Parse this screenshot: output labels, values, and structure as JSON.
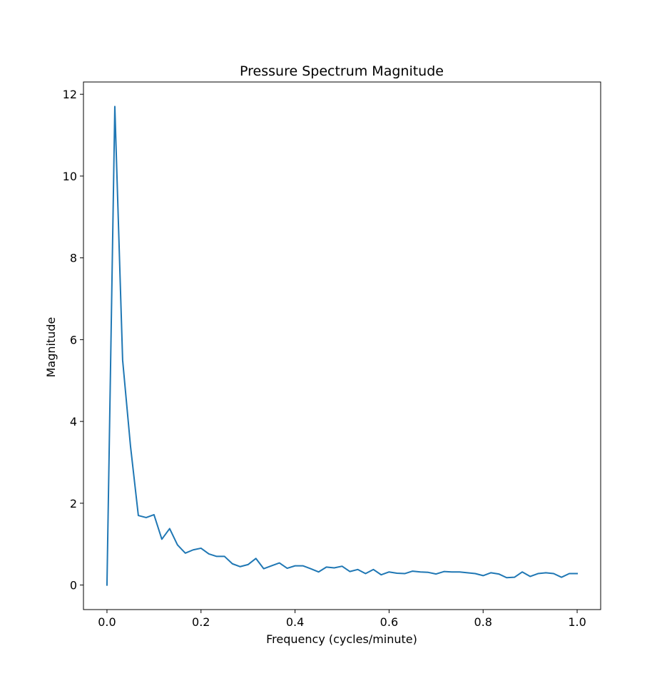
{
  "chart_data": {
    "type": "line",
    "title": "Pressure Spectrum Magnitude",
    "xlabel": "Frequency (cycles/minute)",
    "ylabel": "Magnitude",
    "xlim": [
      -0.05,
      1.05
    ],
    "ylim": [
      -0.6,
      12.3
    ],
    "xticks": [
      0.0,
      0.2,
      0.4,
      0.6,
      0.8,
      1.0
    ],
    "xtick_labels": [
      "0.0",
      "0.2",
      "0.4",
      "0.6",
      "0.8",
      "1.0"
    ],
    "yticks": [
      0,
      2,
      4,
      6,
      8,
      10,
      12
    ],
    "ytick_labels": [
      "0",
      "2",
      "4",
      "6",
      "8",
      "10",
      "12"
    ],
    "grid": false,
    "series": [
      {
        "color": "#1f77b4",
        "x": [
          0.0,
          0.0167,
          0.0333,
          0.05,
          0.0667,
          0.0833,
          0.1,
          0.1167,
          0.1333,
          0.15,
          0.1667,
          0.1833,
          0.2,
          0.2167,
          0.2333,
          0.25,
          0.2667,
          0.2833,
          0.3,
          0.3167,
          0.3333,
          0.35,
          0.3667,
          0.3833,
          0.4,
          0.4167,
          0.4333,
          0.45,
          0.4667,
          0.4833,
          0.5,
          0.5167,
          0.5333,
          0.55,
          0.5667,
          0.5833,
          0.6,
          0.6167,
          0.6333,
          0.65,
          0.6667,
          0.6833,
          0.7,
          0.7167,
          0.7333,
          0.75,
          0.7667,
          0.7833,
          0.8,
          0.8167,
          0.8333,
          0.85,
          0.8667,
          0.8833,
          0.9,
          0.9167,
          0.9333,
          0.95,
          0.9667,
          0.9833,
          1.0
        ],
        "y": [
          0.0,
          11.7,
          5.5,
          3.4,
          1.7,
          1.65,
          1.72,
          1.12,
          1.38,
          0.98,
          0.78,
          0.86,
          0.9,
          0.76,
          0.7,
          0.7,
          0.52,
          0.45,
          0.5,
          0.65,
          0.4,
          0.47,
          0.54,
          0.41,
          0.47,
          0.47,
          0.4,
          0.32,
          0.44,
          0.42,
          0.46,
          0.33,
          0.38,
          0.28,
          0.38,
          0.25,
          0.32,
          0.29,
          0.28,
          0.34,
          0.32,
          0.31,
          0.27,
          0.33,
          0.32,
          0.32,
          0.3,
          0.28,
          0.23,
          0.3,
          0.27,
          0.18,
          0.19,
          0.32,
          0.21,
          0.28,
          0.3,
          0.28,
          0.19,
          0.28,
          0.28
        ]
      }
    ]
  }
}
